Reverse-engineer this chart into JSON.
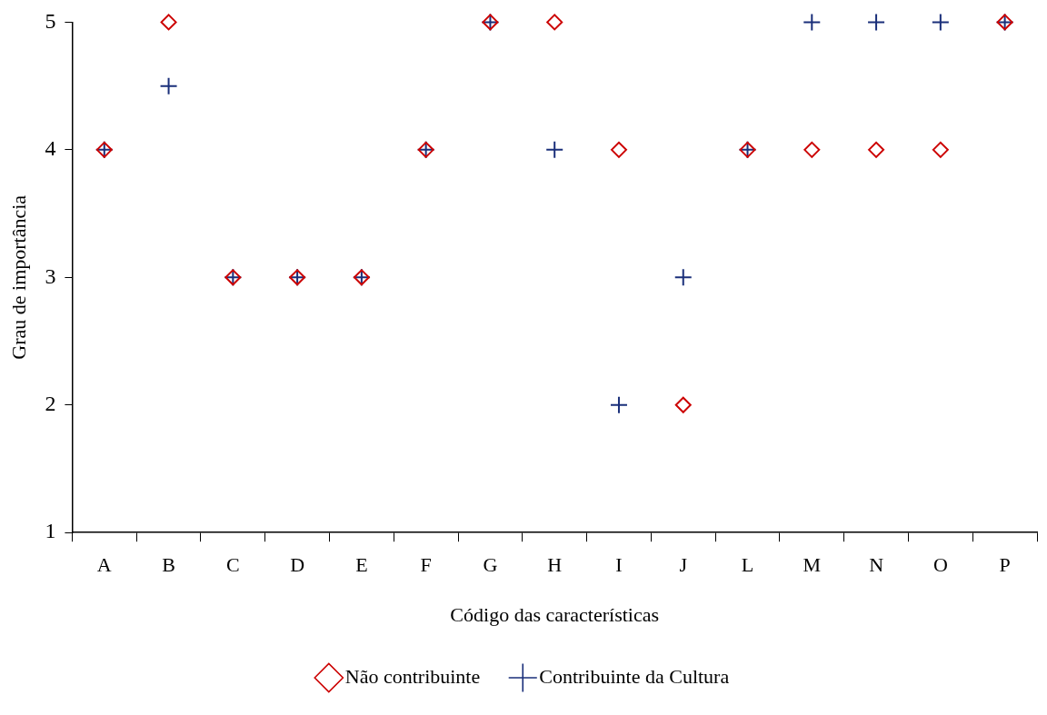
{
  "chart_data": {
    "type": "scatter",
    "xlabel": "Código das características",
    "ylabel": "Grau de importância",
    "categories": [
      "A",
      "B",
      "C",
      "D",
      "E",
      "F",
      "G",
      "H",
      "I",
      "J",
      "L",
      "M",
      "N",
      "O",
      "P"
    ],
    "series": [
      {
        "name": "Não contribuinte",
        "color": "#cc0000",
        "marker": "diamond",
        "values": [
          4,
          5,
          3,
          3,
          3,
          4,
          5,
          5,
          4,
          2,
          4,
          4,
          4,
          4,
          5
        ]
      },
      {
        "name": "Contribuinte da Cultura",
        "color": "#1a2f7a",
        "marker": "cross",
        "values": [
          4,
          4.5,
          3,
          3,
          3,
          4,
          5,
          4,
          2,
          3,
          4,
          5,
          5,
          5,
          5
        ]
      }
    ],
    "ylim": [
      1,
      5
    ],
    "yticks": [
      1,
      2,
      3,
      4,
      5
    ],
    "grid": false,
    "legend": "bottom"
  }
}
